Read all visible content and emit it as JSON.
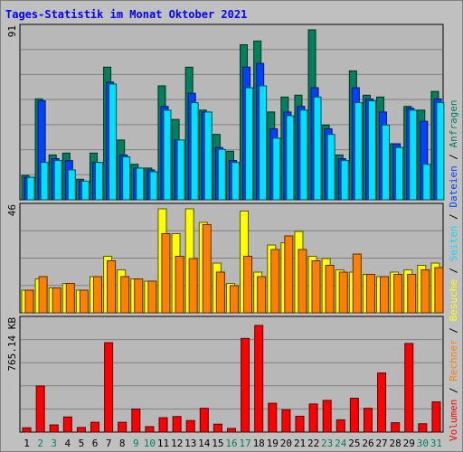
{
  "chart_data": {
    "type": "bar",
    "title": "Tages-Statistik im Monat Oktober 2021",
    "categories": [
      "1",
      "2",
      "3",
      "4",
      "5",
      "6",
      "7",
      "8",
      "9",
      "10",
      "11",
      "12",
      "13",
      "14",
      "15",
      "16",
      "17",
      "18",
      "19",
      "20",
      "21",
      "22",
      "23",
      "24",
      "25",
      "26",
      "27",
      "28",
      "29",
      "30",
      "31"
    ],
    "weekend_days": [
      "2",
      "3",
      "9",
      "10",
      "16",
      "17",
      "23",
      "24",
      "30",
      "31"
    ],
    "panels": [
      {
        "id": "top",
        "ymax_label": "91",
        "ymax": 91,
        "series": [
          {
            "name": "Anfragen",
            "color": "#00805c",
            "values": [
              13,
              54,
              24,
              25,
              11,
              25,
              71,
              32,
              19,
              17,
              61,
              43,
              71,
              48,
              35,
              26,
              83,
              85,
              47,
              55,
              56,
              91,
              40,
              24,
              69,
              56,
              55,
              30,
              50,
              48,
              58
            ]
          },
          {
            "name": "Dateien",
            "color": "#0042ff",
            "values": [
              12,
              53,
              22,
              21,
              10,
              20,
              63,
              24,
              17,
              16,
              50,
              32,
              57,
              47,
              28,
              21,
              71,
              73,
              38,
              47,
              50,
              60,
              38,
              22,
              60,
              54,
              47,
              30,
              49,
              42,
              54
            ]
          },
          {
            "name": "Seiten",
            "color": "#00e0ff",
            "values": [
              12,
              20,
              21,
              16,
              10,
              20,
              62,
              23,
              17,
              15,
              48,
              32,
              52,
              47,
              27,
              20,
              60,
              61,
              33,
              45,
              48,
              55,
              35,
              21,
              52,
              53,
              40,
              28,
              48,
              19,
              52
            ]
          }
        ]
      },
      {
        "id": "middle",
        "ymax_label": "46",
        "ymax": 46,
        "series": [
          {
            "name": "Besuche",
            "color": "#ffff00",
            "values": [
              10,
              15,
              11,
              13,
              10,
              16,
              25,
              19,
              15,
              14,
              46,
              35,
              46,
              40,
              22,
              13,
              45,
              18,
              30,
              31,
              36,
              25,
              24,
              19,
              18,
              17,
              16,
              18,
              19,
              21,
              22
            ]
          },
          {
            "name": "Rechner",
            "color": "#ff8000",
            "values": [
              10,
              16,
              11,
              13,
              10,
              16,
              23,
              16,
              15,
              14,
              35,
              25,
              24,
              39,
              18,
              12,
              25,
              16,
              28,
              34,
              28,
              23,
              21,
              18,
              26,
              17,
              16,
              17,
              17,
              19,
              20
            ]
          }
        ]
      },
      {
        "id": "bottom",
        "ymax_label": "765.14 KB",
        "ymax": 765.14,
        "series": [
          {
            "name": "Volumen",
            "color": "#ff0000",
            "values": [
              30,
              320,
              50,
              105,
              32,
              68,
              620,
              68,
              160,
              38,
              100,
              108,
              80,
              165,
              55,
              25,
              650,
              740,
              200,
              155,
              110,
              195,
              220,
              85,
              235,
              165,
              410,
              65,
              615,
              58,
              210
            ]
          }
        ]
      }
    ],
    "legend_right": [
      {
        "text": "Anfragen",
        "color": "#00805c"
      },
      {
        "text": "Dateien",
        "color": "#0042ff"
      },
      {
        "text": "Seiten",
        "color": "#00e0ff"
      },
      {
        "text": "Besuche",
        "color": "#ffff00"
      },
      {
        "text": "Rechner",
        "color": "#ff8000"
      },
      {
        "text": "Volumen",
        "color": "#ff0000"
      }
    ],
    "legend_separator": "/"
  }
}
